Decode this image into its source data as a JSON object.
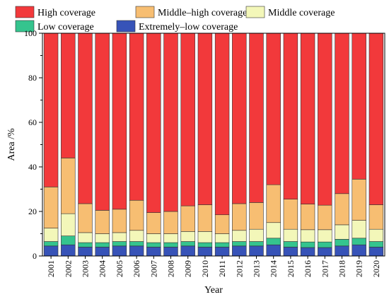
{
  "chart_data": {
    "type": "bar",
    "stacked": true,
    "title": "",
    "xlabel": "Year",
    "ylabel": "Area /%",
    "ylim": [
      0,
      100
    ],
    "yticks": [
      0,
      20,
      40,
      60,
      80,
      100
    ],
    "grid": false,
    "legend_position": "top",
    "categories": [
      "2001",
      "2002",
      "2003",
      "2004",
      "2005",
      "2006",
      "2007",
      "2008",
      "2009",
      "2010",
      "2011",
      "2012",
      "2013",
      "2014",
      "2015",
      "2016",
      "2017",
      "2018",
      "2019",
      "2020"
    ],
    "series": [
      {
        "name": "Extremely–low coverage",
        "color": "#3753b8",
        "values": [
          4.5,
          5.0,
          4.0,
          4.0,
          4.5,
          4.5,
          4.0,
          4.0,
          4.5,
          4.0,
          4.0,
          4.5,
          4.5,
          5.0,
          4.0,
          3.8,
          3.8,
          4.5,
          5.0,
          4.0
        ]
      },
      {
        "name": "Low coverage",
        "color": "#35c48e",
        "values": [
          2.0,
          4.0,
          2.0,
          2.0,
          2.0,
          2.0,
          2.0,
          2.0,
          2.0,
          2.0,
          2.0,
          2.0,
          2.0,
          3.0,
          2.5,
          2.5,
          2.5,
          3.0,
          3.0,
          2.5
        ]
      },
      {
        "name": "Middle coverage",
        "color": "#f3f7b9",
        "values": [
          6.0,
          10.0,
          4.5,
          4.0,
          4.0,
          5.0,
          4.0,
          4.0,
          4.5,
          5.0,
          4.0,
          5.0,
          5.5,
          7.0,
          5.5,
          5.5,
          5.5,
          6.5,
          8.0,
          5.5
        ]
      },
      {
        "name": "Middle–high coverage",
        "color": "#f7be72",
        "values": [
          18.5,
          25.0,
          13.0,
          10.5,
          10.5,
          13.5,
          9.5,
          10.0,
          11.5,
          12.0,
          8.5,
          12.0,
          12.0,
          17.0,
          13.5,
          11.5,
          11.0,
          14.0,
          18.5,
          11.0
        ]
      },
      {
        "name": "High coverage",
        "color": "#f2393b",
        "values": [
          69.0,
          56.0,
          76.5,
          79.5,
          79.0,
          75.0,
          80.5,
          80.0,
          77.5,
          77.0,
          81.5,
          76.5,
          76.0,
          68.0,
          74.5,
          76.7,
          77.2,
          72.0,
          65.5,
          77.0
        ]
      }
    ]
  }
}
